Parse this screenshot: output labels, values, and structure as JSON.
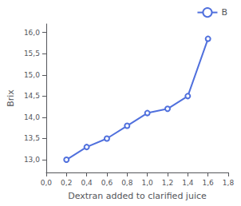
{
  "chart_data": {
    "type": "line",
    "x": [
      0.2,
      0.4,
      0.6,
      0.8,
      1.0,
      1.2,
      1.4,
      1.6
    ],
    "series": [
      {
        "name": "B",
        "values": [
          13.0,
          13.3,
          13.5,
          13.8,
          14.1,
          14.2,
          14.5,
          15.85
        ],
        "marker": "circle"
      }
    ],
    "xlabel": "Dextran added to clarified juice",
    "ylabel": "Brix",
    "xlim": [
      0.0,
      1.8
    ],
    "ylim": [
      12.7,
      16.2
    ],
    "xticks": [
      {
        "value": 0.0,
        "label": "0,0"
      },
      {
        "value": 0.2,
        "label": "0,2"
      },
      {
        "value": 0.4,
        "label": "0,4"
      },
      {
        "value": 0.6,
        "label": "0,6"
      },
      {
        "value": 0.8,
        "label": "0,8"
      },
      {
        "value": 1.0,
        "label": "1,0"
      },
      {
        "value": 1.2,
        "label": "1,2"
      },
      {
        "value": 1.4,
        "label": "1,4"
      },
      {
        "value": 1.6,
        "label": "1,6"
      },
      {
        "value": 1.8,
        "label": "1,8"
      }
    ],
    "yticks": [
      {
        "value": 13.0,
        "label": "13,0"
      },
      {
        "value": 13.5,
        "label": "13,5"
      },
      {
        "value": 14.0,
        "label": "14,0"
      },
      {
        "value": 14.5,
        "label": "14,5"
      },
      {
        "value": 15.0,
        "label": "15,0"
      },
      {
        "value": 15.5,
        "label": "15,5"
      },
      {
        "value": 16.0,
        "label": "16,0"
      }
    ],
    "grid": false,
    "legend": "upper right"
  }
}
